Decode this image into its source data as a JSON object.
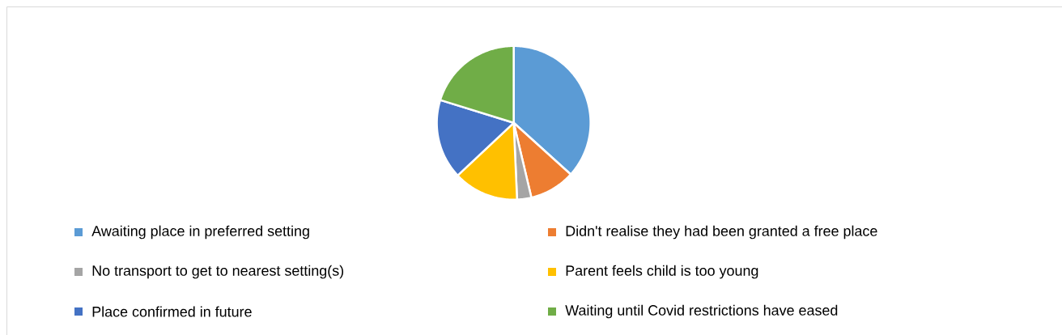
{
  "chart_data": {
    "type": "pie",
    "categories": [
      "Awaiting place in preferred setting",
      "Didn't realise they had been granted a free place",
      "No transport to get to nearest setting(s)",
      "Parent feels child is too young",
      "Place confirmed in future",
      "Waiting until Covid restrictions have eased"
    ],
    "values": [
      36.7,
      9.6,
      3,
      13.7,
      16.8,
      20.2
    ],
    "colors": [
      "#5b9bd5",
      "#ed7d31",
      "#a5a5a5",
      "#ffc000",
      "#4472c4",
      "#70ad47"
    ],
    "legend": "bottom"
  }
}
